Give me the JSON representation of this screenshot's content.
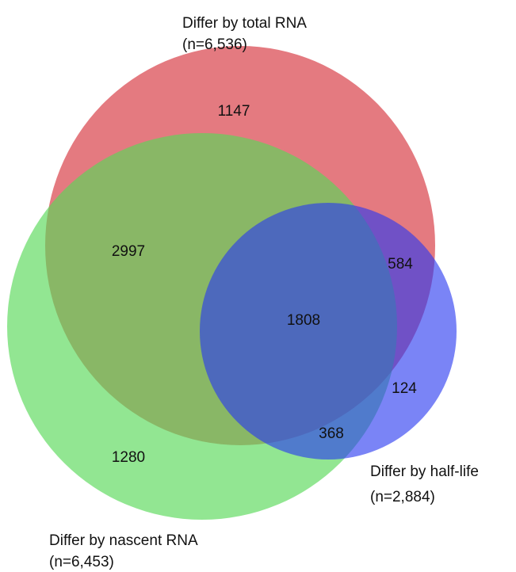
{
  "sets": [
    {
      "label": "Differ by total RNA",
      "size": "(n=6,536)"
    },
    {
      "label": "Differ by half-life",
      "size": "(n=2,884)"
    },
    {
      "label": "Differ by nascent RNA",
      "size": "(n=6,453)"
    }
  ],
  "regions": [
    1147,
    2997,
    584,
    1808,
    124,
    368,
    1280
  ]
}
